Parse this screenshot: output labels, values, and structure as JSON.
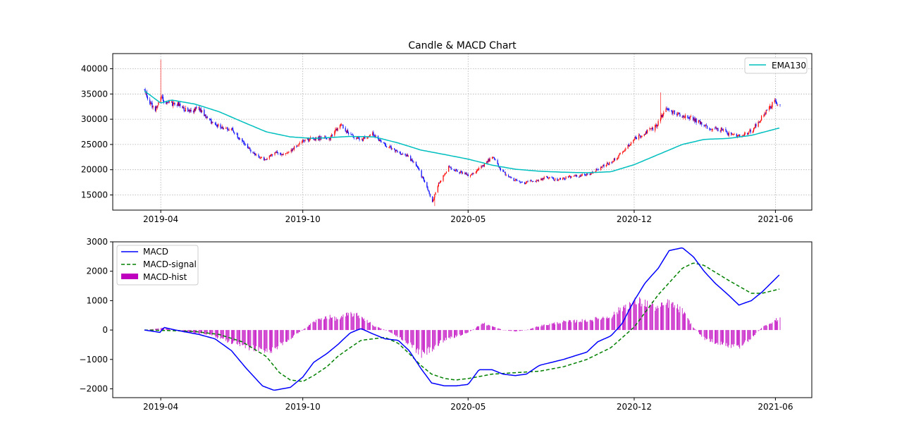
{
  "chart_data": [
    {
      "type": "candlestick",
      "title": "Candle & MACD Chart",
      "xlabel": "",
      "ylabel": "",
      "x_ticks": [
        "2019-04",
        "2019-10",
        "2020-05",
        "2020-12",
        "2021-06"
      ],
      "y_ticks": [
        "15000",
        "20000",
        "25000",
        "30000",
        "35000",
        "40000"
      ],
      "ylim": [
        12000,
        43000
      ],
      "grid": true,
      "legend": {
        "position": "top-right",
        "entries": [
          "EMA130"
        ]
      },
      "colors": {
        "up": "#ff0000",
        "down": "#0000ff",
        "ema": "#00bfbf",
        "grid": "#b0b0b0"
      },
      "close_anchors": [
        [
          "2019-03-11",
          35800
        ],
        [
          "2019-03-18",
          33200
        ],
        [
          "2019-03-25",
          31800
        ],
        [
          "2019-04-01",
          34800
        ],
        [
          "2019-04-08",
          33200
        ],
        [
          "2019-04-22",
          33000
        ],
        [
          "2019-05-06",
          31500
        ],
        [
          "2019-05-20",
          32100
        ],
        [
          "2019-06-03",
          29700
        ],
        [
          "2019-06-17",
          28500
        ],
        [
          "2019-07-01",
          28100
        ],
        [
          "2019-07-15",
          25500
        ],
        [
          "2019-07-29",
          23300
        ],
        [
          "2019-08-12",
          22000
        ],
        [
          "2019-08-26",
          23500
        ],
        [
          "2019-09-09",
          23000
        ],
        [
          "2019-09-23",
          24800
        ],
        [
          "2019-10-07",
          26100
        ],
        [
          "2019-10-21",
          26300
        ],
        [
          "2019-11-04",
          26000
        ],
        [
          "2019-11-18",
          28900
        ],
        [
          "2019-12-02",
          26800
        ],
        [
          "2019-12-16",
          26000
        ],
        [
          "2019-12-30",
          27200
        ],
        [
          "2020-01-13",
          25000
        ],
        [
          "2020-01-27",
          24000
        ],
        [
          "2020-02-10",
          23000
        ],
        [
          "2020-02-24",
          21000
        ],
        [
          "2020-03-09",
          16500
        ],
        [
          "2020-03-16",
          13500
        ],
        [
          "2020-03-23",
          17000
        ],
        [
          "2020-04-06",
          20500
        ],
        [
          "2020-04-20",
          19500
        ],
        [
          "2020-05-04",
          18800
        ],
        [
          "2020-05-18",
          20500
        ],
        [
          "2020-06-01",
          22500
        ],
        [
          "2020-06-15",
          19500
        ],
        [
          "2020-06-29",
          18000
        ],
        [
          "2020-07-13",
          17400
        ],
        [
          "2020-07-27",
          17800
        ],
        [
          "2020-08-10",
          18500
        ],
        [
          "2020-08-24",
          18000
        ],
        [
          "2020-09-07",
          18500
        ],
        [
          "2020-09-21",
          18800
        ],
        [
          "2020-10-05",
          19200
        ],
        [
          "2020-10-19",
          20500
        ],
        [
          "2020-11-02",
          21500
        ],
        [
          "2020-11-16",
          23500
        ],
        [
          "2020-11-30",
          26000
        ],
        [
          "2020-12-14",
          27200
        ],
        [
          "2020-12-28",
          28500
        ],
        [
          "2021-01-11",
          32000
        ],
        [
          "2021-01-25",
          31000
        ],
        [
          "2021-02-08",
          30500
        ],
        [
          "2021-02-22",
          29500
        ],
        [
          "2021-03-08",
          28200
        ],
        [
          "2021-03-22",
          28000
        ],
        [
          "2021-04-05",
          26800
        ],
        [
          "2021-04-19",
          26500
        ],
        [
          "2021-05-03",
          28000
        ],
        [
          "2021-05-17",
          31000
        ],
        [
          "2021-05-31",
          33500
        ],
        [
          "2021-06-07",
          33000
        ]
      ],
      "wick_extremes": [
        {
          "date": "2019-04-01",
          "high": 41800
        },
        {
          "date": "2020-03-19",
          "low": 12800
        },
        {
          "date": "2021-01-04",
          "high": 35300
        }
      ],
      "ema_anchors": [
        [
          "2019-03-11",
          35600
        ],
        [
          "2019-04-01",
          33200
        ],
        [
          "2019-04-15",
          33800
        ],
        [
          "2019-05-15",
          33000
        ],
        [
          "2019-06-15",
          31500
        ],
        [
          "2019-07-15",
          29500
        ],
        [
          "2019-08-15",
          27500
        ],
        [
          "2019-09-15",
          26500
        ],
        [
          "2019-10-15",
          26200
        ],
        [
          "2019-12-01",
          26600
        ],
        [
          "2020-01-01",
          26500
        ],
        [
          "2020-02-01",
          25300
        ],
        [
          "2020-03-01",
          23900
        ],
        [
          "2020-04-01",
          23000
        ],
        [
          "2020-05-01",
          22100
        ],
        [
          "2020-06-01",
          20900
        ],
        [
          "2020-07-01",
          20100
        ],
        [
          "2020-08-01",
          19700
        ],
        [
          "2020-09-01",
          19500
        ],
        [
          "2020-10-01",
          19400
        ],
        [
          "2020-11-01",
          19600
        ],
        [
          "2020-12-01",
          21000
        ],
        [
          "2021-01-01",
          23000
        ],
        [
          "2021-02-01",
          25000
        ],
        [
          "2021-03-01",
          26000
        ],
        [
          "2021-04-01",
          26200
        ],
        [
          "2021-05-01",
          26800
        ],
        [
          "2021-06-07",
          28300
        ]
      ]
    },
    {
      "type": "line",
      "title": "",
      "xlabel": "",
      "ylabel": "",
      "x_ticks": [
        "2019-04",
        "2019-10",
        "2020-05",
        "2020-12",
        "2021-06"
      ],
      "y_ticks": [
        "−2000",
        "−1000",
        "0",
        "1000",
        "2000",
        "3000"
      ],
      "ylim": [
        -2300,
        3000
      ],
      "grid": false,
      "legend": {
        "position": "top-left",
        "entries": [
          "MACD",
          "MACD-signal",
          "MACD-hist"
        ]
      },
      "colors": {
        "macd": "#0000ff",
        "signal": "#008000",
        "hist": "#bf00bf"
      },
      "series": [
        {
          "name": "MACD",
          "style": "solid",
          "points": [
            [
              "2019-03-11",
              0
            ],
            [
              "2019-03-31",
              -80
            ],
            [
              "2019-04-05",
              90
            ],
            [
              "2019-04-20",
              0
            ],
            [
              "2019-05-20",
              -150
            ],
            [
              "2019-06-10",
              -300
            ],
            [
              "2019-07-01",
              -700
            ],
            [
              "2019-07-20",
              -1300
            ],
            [
              "2019-08-10",
              -1900
            ],
            [
              "2019-08-25",
              -2050
            ],
            [
              "2019-09-15",
              -1950
            ],
            [
              "2019-10-01",
              -1600
            ],
            [
              "2019-10-15",
              -1100
            ],
            [
              "2019-11-01",
              -800
            ],
            [
              "2019-11-15",
              -500
            ],
            [
              "2019-12-01",
              -100
            ],
            [
              "2019-12-15",
              50
            ],
            [
              "2020-01-01",
              -150
            ],
            [
              "2020-01-15",
              -300
            ],
            [
              "2020-02-01",
              -350
            ],
            [
              "2020-02-15",
              -700
            ],
            [
              "2020-03-01",
              -1300
            ],
            [
              "2020-03-15",
              -1800
            ],
            [
              "2020-04-01",
              -1900
            ],
            [
              "2020-04-15",
              -1900
            ],
            [
              "2020-05-01",
              -1850
            ],
            [
              "2020-05-15",
              -1350
            ],
            [
              "2020-06-01",
              -1350
            ],
            [
              "2020-06-15",
              -1500
            ],
            [
              "2020-07-01",
              -1550
            ],
            [
              "2020-07-15",
              -1500
            ],
            [
              "2020-08-01",
              -1200
            ],
            [
              "2020-09-01",
              -1000
            ],
            [
              "2020-10-01",
              -750
            ],
            [
              "2020-10-15",
              -400
            ],
            [
              "2020-11-01",
              -200
            ],
            [
              "2020-11-15",
              200
            ],
            [
              "2020-12-01",
              1000
            ],
            [
              "2020-12-15",
              1600
            ],
            [
              "2021-01-01",
              2100
            ],
            [
              "2021-01-15",
              2700
            ],
            [
              "2021-02-01",
              2800
            ],
            [
              "2021-02-15",
              2500
            ],
            [
              "2021-03-01",
              2000
            ],
            [
              "2021-03-15",
              1600
            ],
            [
              "2021-04-01",
              1200
            ],
            [
              "2021-04-15",
              850
            ],
            [
              "2021-05-01",
              1000
            ],
            [
              "2021-05-15",
              1300
            ],
            [
              "2021-06-07",
              1900
            ]
          ]
        },
        {
          "name": "MACD-signal",
          "style": "dashed",
          "points": [
            [
              "2019-03-11",
              0
            ],
            [
              "2019-04-15",
              -20
            ],
            [
              "2019-05-15",
              -50
            ],
            [
              "2019-06-15",
              -150
            ],
            [
              "2019-07-15",
              -400
            ],
            [
              "2019-08-15",
              -900
            ],
            [
              "2019-09-01",
              -1450
            ],
            [
              "2019-09-15",
              -1700
            ],
            [
              "2019-10-01",
              -1750
            ],
            [
              "2019-10-15",
              -1550
            ],
            [
              "2019-11-01",
              -1250
            ],
            [
              "2019-11-15",
              -900
            ],
            [
              "2019-12-01",
              -600
            ],
            [
              "2019-12-15",
              -350
            ],
            [
              "2020-01-15",
              -250
            ],
            [
              "2020-02-01",
              -450
            ],
            [
              "2020-02-15",
              -800
            ],
            [
              "2020-03-01",
              -1200
            ],
            [
              "2020-03-15",
              -1500
            ],
            [
              "2020-04-01",
              -1650
            ],
            [
              "2020-04-15",
              -1700
            ],
            [
              "2020-05-01",
              -1650
            ],
            [
              "2020-06-01",
              -1500
            ],
            [
              "2020-07-01",
              -1450
            ],
            [
              "2020-08-01",
              -1400
            ],
            [
              "2020-09-01",
              -1250
            ],
            [
              "2020-10-01",
              -1000
            ],
            [
              "2020-11-01",
              -600
            ],
            [
              "2020-12-01",
              100
            ],
            [
              "2021-01-01",
              1200
            ],
            [
              "2021-02-01",
              2100
            ],
            [
              "2021-02-15",
              2280
            ],
            [
              "2021-03-01",
              2200
            ],
            [
              "2021-04-01",
              1700
            ],
            [
              "2021-05-01",
              1250
            ],
            [
              "2021-05-15",
              1250
            ],
            [
              "2021-06-07",
              1400
            ]
          ]
        },
        {
          "name": "MACD-hist",
          "style": "bars",
          "points": [
            [
              "2019-03-11",
              0
            ],
            [
              "2019-04-05",
              80
            ],
            [
              "2019-05-01",
              -80
            ],
            [
              "2019-06-01",
              -150
            ],
            [
              "2019-07-01",
              -450
            ],
            [
              "2019-08-01",
              -700
            ],
            [
              "2019-08-20",
              -750
            ],
            [
              "2019-09-10",
              -400
            ],
            [
              "2019-10-01",
              0
            ],
            [
              "2019-10-15",
              300
            ],
            [
              "2019-11-01",
              500
            ],
            [
              "2019-11-15",
              400
            ],
            [
              "2019-12-01",
              600
            ],
            [
              "2019-12-15",
              500
            ],
            [
              "2020-01-01",
              150
            ],
            [
              "2020-01-20",
              -50
            ],
            [
              "2020-02-15",
              -500
            ],
            [
              "2020-03-01",
              -900
            ],
            [
              "2020-03-15",
              -700
            ],
            [
              "2020-04-01",
              -350
            ],
            [
              "2020-05-01",
              -100
            ],
            [
              "2020-05-20",
              250
            ],
            [
              "2020-06-15",
              0
            ],
            [
              "2020-07-01",
              -50
            ],
            [
              "2020-07-15",
              0
            ],
            [
              "2020-08-01",
              150
            ],
            [
              "2020-09-01",
              300
            ],
            [
              "2020-10-01",
              350
            ],
            [
              "2020-11-01",
              500
            ],
            [
              "2020-11-20",
              900
            ],
            [
              "2020-12-05",
              1050
            ],
            [
              "2020-12-20",
              950
            ],
            [
              "2021-01-01",
              800
            ],
            [
              "2021-01-15",
              1000
            ],
            [
              "2021-02-01",
              700
            ],
            [
              "2021-02-15",
              100
            ],
            [
              "2021-03-01",
              -300
            ],
            [
              "2021-04-01",
              -600
            ],
            [
              "2021-04-15",
              -600
            ],
            [
              "2021-05-01",
              -300
            ],
            [
              "2021-05-15",
              100
            ],
            [
              "2021-06-07",
              450
            ]
          ]
        }
      ]
    }
  ]
}
